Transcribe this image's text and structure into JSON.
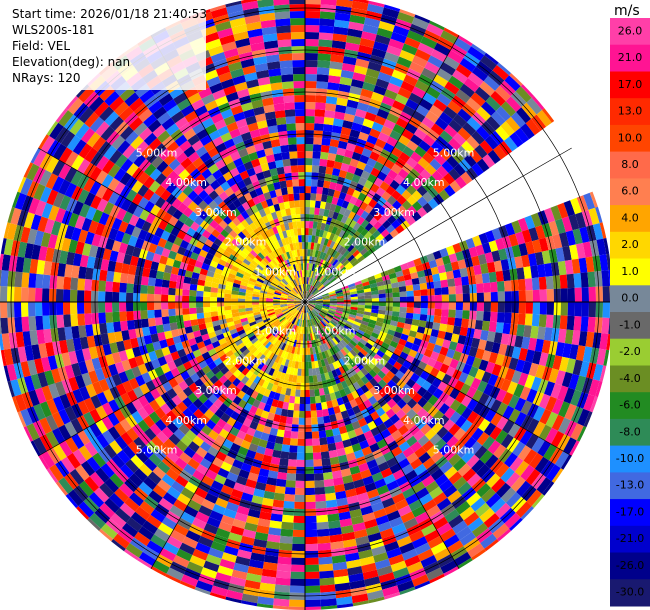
{
  "header": {
    "start_time": "Start time: 2026/01/18 21:40:53",
    "instrument": "WLS200s-181",
    "field": "Field: VEL",
    "elevation": "Elevation(deg): nan",
    "nrays": "NRays: 120"
  },
  "chart_data": {
    "type": "heatmap",
    "projection": "polar-ppi",
    "field": "VEL",
    "units": "m/s",
    "n_rays": 120,
    "max_range_km": 6.0,
    "range_ring_labels_km": [
      1.0,
      2.0,
      3.0,
      4.0,
      5.0
    ],
    "range_ring_label_text": [
      "1.00km",
      "2.00km",
      "3.00km",
      "4.00km",
      "5.00km"
    ],
    "blanked_sector_deg": [
      55,
      68
    ],
    "near_field": {
      "extent_km": 2.3,
      "west_sector_values_mps": [
        2.0,
        4.0,
        4.0,
        1.0
      ],
      "east_sector_values_mps": [
        0.0,
        -2.0,
        -4.0,
        -6.0,
        1.0
      ]
    },
    "colorbar": {
      "label": "m/s",
      "ticks": [
        "26.0",
        "21.0",
        "17.0",
        "13.0",
        "10.0",
        "8.0",
        "6.0",
        "4.0",
        "2.0",
        "1.0",
        "0.0",
        "-1.0",
        "-2.0",
        "-4.0",
        "-6.0",
        "-8.0",
        "-10.0",
        "-13.0",
        "-17.0",
        "-21.0",
        "-26.0",
        "-30.0"
      ],
      "bins": [
        {
          "from": 26,
          "to": 30,
          "color": "#ff3fa8"
        },
        {
          "from": 21,
          "to": 26,
          "color": "#ff1493"
        },
        {
          "from": 17,
          "to": 21,
          "color": "#ff0000"
        },
        {
          "from": 13,
          "to": 17,
          "color": "#ff2a00"
        },
        {
          "from": 10,
          "to": 13,
          "color": "#ff4500"
        },
        {
          "from": 8,
          "to": 10,
          "color": "#ff6a4a"
        },
        {
          "from": 6,
          "to": 8,
          "color": "#ff7f50"
        },
        {
          "from": 4,
          "to": 6,
          "color": "#ffa500"
        },
        {
          "from": 2,
          "to": 4,
          "color": "#ffd700"
        },
        {
          "from": 1,
          "to": 2,
          "color": "#ffff00"
        },
        {
          "from": 0,
          "to": 1,
          "color": "#778899"
        },
        {
          "from": -1,
          "to": 0,
          "color": "#696969"
        },
        {
          "from": -2,
          "to": -1,
          "color": "#9acd32"
        },
        {
          "from": -4,
          "to": -2,
          "color": "#6b8e23"
        },
        {
          "from": -6,
          "to": -4,
          "color": "#228b22"
        },
        {
          "from": -8,
          "to": -6,
          "color": "#2e8b57"
        },
        {
          "from": -10,
          "to": -8,
          "color": "#1e90ff"
        },
        {
          "from": -13,
          "to": -10,
          "color": "#4169e1"
        },
        {
          "from": -17,
          "to": -13,
          "color": "#0000ff"
        },
        {
          "from": -21,
          "to": -17,
          "color": "#0000cd"
        },
        {
          "from": -26,
          "to": -21,
          "color": "#00008b"
        },
        {
          "from": -30,
          "to": -26,
          "color": "#191970"
        }
      ]
    }
  }
}
